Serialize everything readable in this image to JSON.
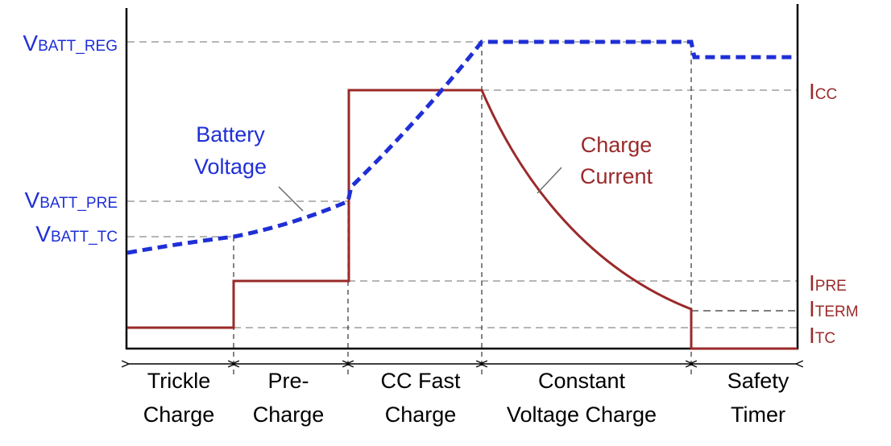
{
  "labels": {
    "vbatt_reg": {
      "main": "V",
      "sub": "BATT_REG"
    },
    "vbatt_pre": {
      "main": "V",
      "sub": "BATT_PRE"
    },
    "vbatt_tc": {
      "main": "V",
      "sub": "BATT_TC"
    },
    "i_cc": {
      "main": "I",
      "sub": "CC"
    },
    "i_pre": {
      "main": "I",
      "sub": "PRE"
    },
    "i_term": {
      "main": "I",
      "sub": "TERM"
    },
    "i_tc": {
      "main": "I",
      "sub": "TC"
    }
  },
  "curves": {
    "battery_voltage": {
      "line1": "Battery",
      "line2": "Voltage"
    },
    "charge_current": {
      "line1": "Charge",
      "line2": "Current"
    }
  },
  "phases": [
    {
      "line1": "Trickle",
      "line2": "Charge"
    },
    {
      "line1": "Pre-",
      "line2": "Charge"
    },
    {
      "line1": "CC Fast",
      "line2": "Charge"
    },
    {
      "line1": "Constant",
      "line2": "Voltage Charge"
    },
    {
      "line1": "Safety",
      "line2": "Timer"
    }
  ],
  "colors": {
    "voltage": "#1f2fd6",
    "current": "#9a2a2a",
    "axis": "#000000",
    "guide": "#8a8a8a"
  }
}
